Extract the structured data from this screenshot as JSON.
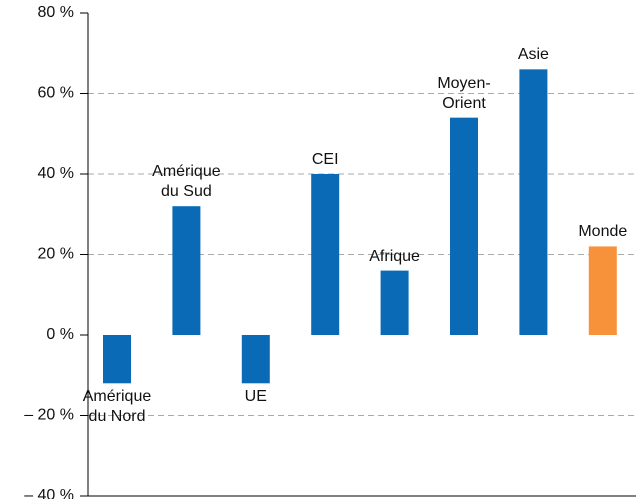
{
  "chart_data": {
    "type": "bar",
    "categories": [
      "Amérique\ndu Nord",
      "Amérique\ndu Sud",
      "UE",
      "CEI",
      "Afrique",
      "Moyen-\nOrient",
      "Asie",
      "Monde"
    ],
    "values": [
      -12,
      32,
      -12,
      40,
      16,
      54,
      66,
      22
    ],
    "colors": [
      "#0a6ab5",
      "#0a6ab5",
      "#0a6ab5",
      "#0a6ab5",
      "#0a6ab5",
      "#0a6ab5",
      "#0a6ab5",
      "#f7923a"
    ],
    "ylim": [
      -40,
      80
    ],
    "yticks": [
      {
        "value": -40,
        "label": "– 40 %"
      },
      {
        "value": -20,
        "label": "– 20 %"
      },
      {
        "value": 0,
        "label": "0 %"
      },
      {
        "value": 20,
        "label": "20 %"
      },
      {
        "value": 40,
        "label": "40 %"
      },
      {
        "value": 60,
        "label": "60 %"
      },
      {
        "value": 80,
        "label": "80 %"
      }
    ],
    "grid": true
  }
}
